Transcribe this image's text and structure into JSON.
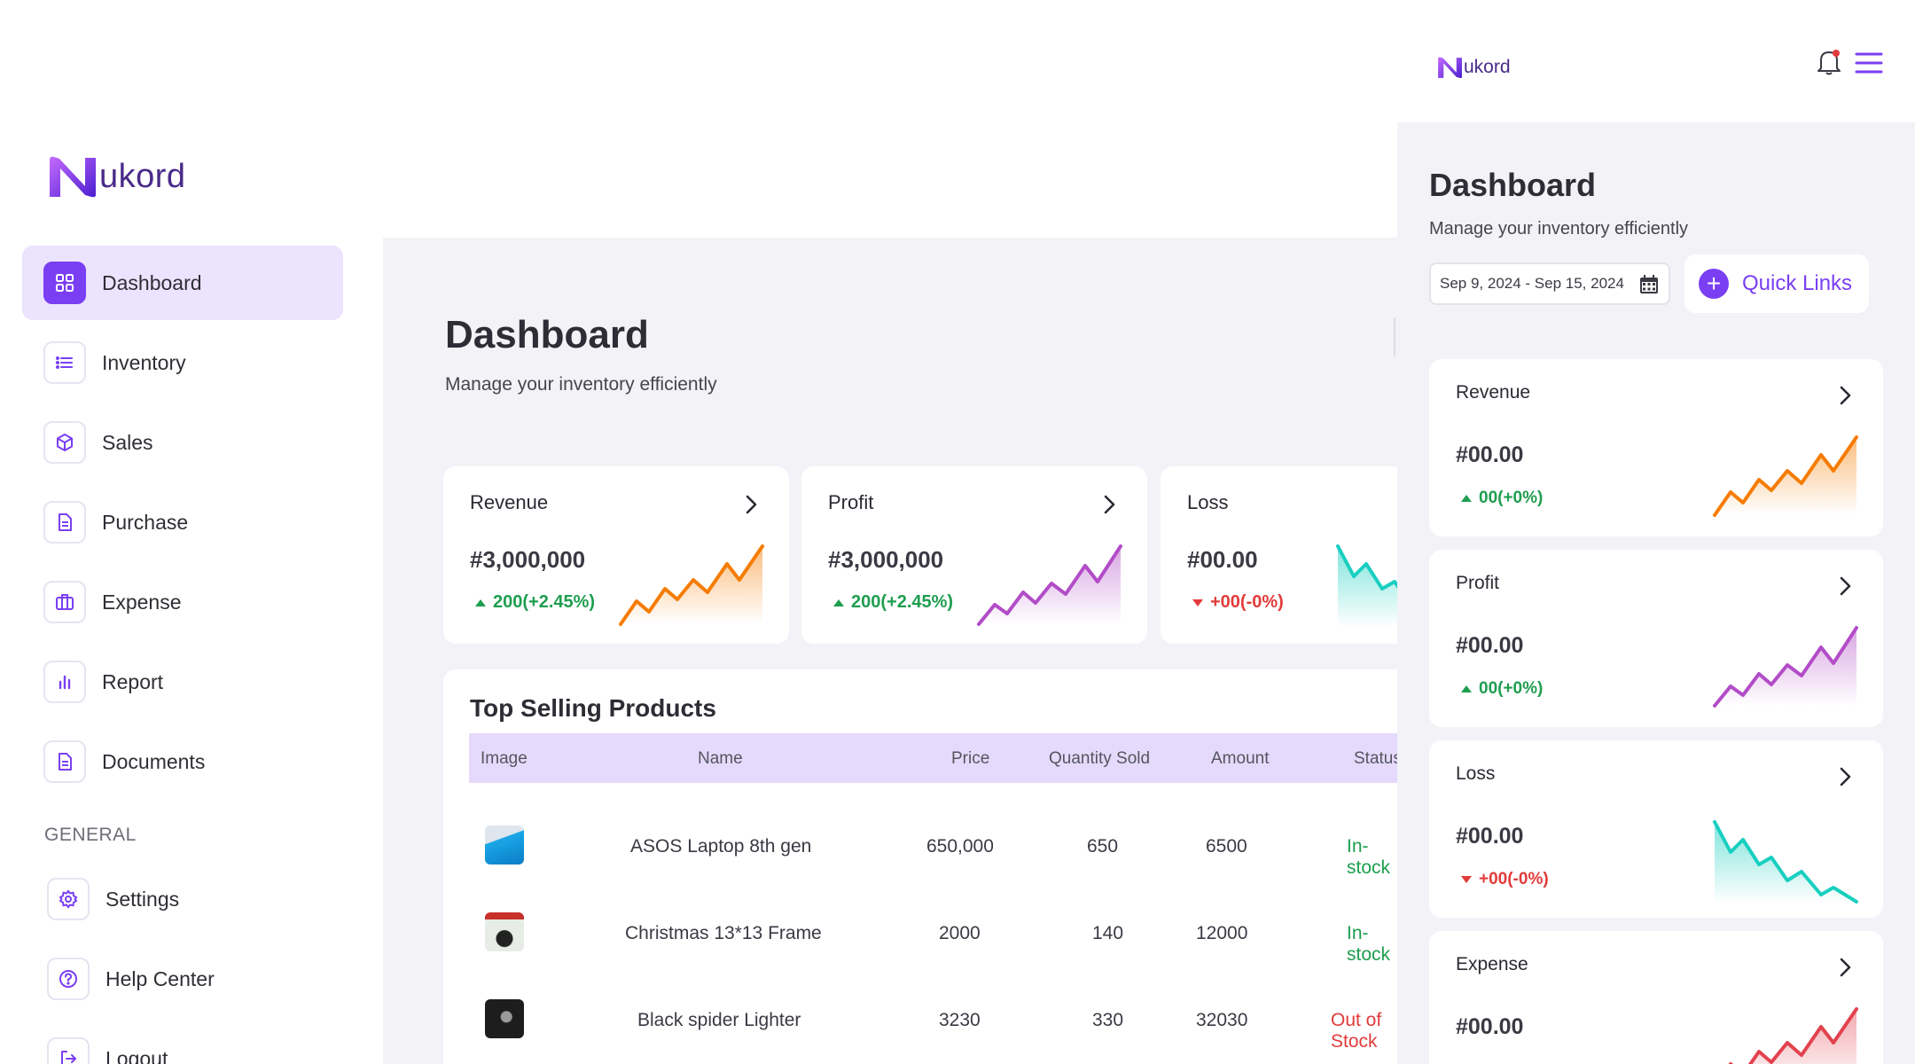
{
  "brand": {
    "name": "ukord",
    "logo_letter": "N"
  },
  "sidebar": {
    "items": [
      {
        "label": "Dashboard",
        "icon": "grid-icon",
        "active": true
      },
      {
        "label": "Inventory",
        "icon": "list-icon"
      },
      {
        "label": "Sales",
        "icon": "box-icon"
      },
      {
        "label": "Purchase",
        "icon": "document-icon"
      },
      {
        "label": "Expense",
        "icon": "briefcase-icon"
      },
      {
        "label": "Report",
        "icon": "bar-chart-icon"
      },
      {
        "label": "Documents",
        "icon": "document-icon"
      }
    ],
    "section_label": "GENERAL",
    "general_items": [
      {
        "label": "Settings",
        "icon": "gear-icon"
      },
      {
        "label": "Help Center",
        "icon": "help-icon"
      },
      {
        "label": "Logout",
        "icon": "logout-icon"
      }
    ]
  },
  "main": {
    "title": "Dashboard",
    "subtitle": "Manage your inventory efficiently",
    "cards": [
      {
        "title": "Revenue",
        "value": "#3,000,000",
        "delta": "200(+2.45%)",
        "trend": "up",
        "color": "#f57c00"
      },
      {
        "title": "Profit",
        "value": "#3,000,000",
        "delta": "200(+2.45%)",
        "trend": "up",
        "color": "#b24cc7"
      },
      {
        "title": "Loss",
        "value": "#00.00",
        "delta": "+00(-0%)",
        "trend": "down",
        "color": "#18cfc0"
      }
    ],
    "table": {
      "title": "Top Selling Products",
      "headers": [
        "Image",
        "Name",
        "Price",
        "Quantity Sold",
        "Amount",
        "Status"
      ],
      "rows": [
        {
          "name": "ASOS Laptop 8th gen",
          "price": "650,000",
          "qty": "650",
          "amount": "6500",
          "status": "In-stock"
        },
        {
          "name": "Christmas 13*13 Frame",
          "price": "2000",
          "qty": "140",
          "amount": "12000",
          "status": "In-stock"
        },
        {
          "name": "Black spider Lighter",
          "price": "3230",
          "qty": "330",
          "amount": "32030",
          "status": "Out of Stock"
        }
      ]
    }
  },
  "mobile": {
    "title": "Dashboard",
    "subtitle": "Manage your inventory efficiently",
    "date_range": "Sep 9, 2024 - Sep 15, 2024",
    "quick_links": "Quick Links",
    "cards": [
      {
        "title": "Revenue",
        "value": "#00.00",
        "delta": "00(+0%)",
        "trend": "up",
        "color": "#f57c00"
      },
      {
        "title": "Profit",
        "value": "#00.00",
        "delta": "00(+0%)",
        "trend": "up",
        "color": "#b24cc7"
      },
      {
        "title": "Loss",
        "value": "#00.00",
        "delta": "+00(-0%)",
        "trend": "down",
        "color": "#18cfc0"
      },
      {
        "title": "Expense",
        "value": "#00.00",
        "delta": "",
        "trend": "up",
        "color": "#e2424e"
      }
    ]
  },
  "colors": {
    "accent": "#7a3ff2",
    "active_bg": "#ece3fe",
    "table_header": "#e5dafc",
    "in_stock": "#1e9e4f",
    "out_of_stock": "#e23b3b"
  }
}
